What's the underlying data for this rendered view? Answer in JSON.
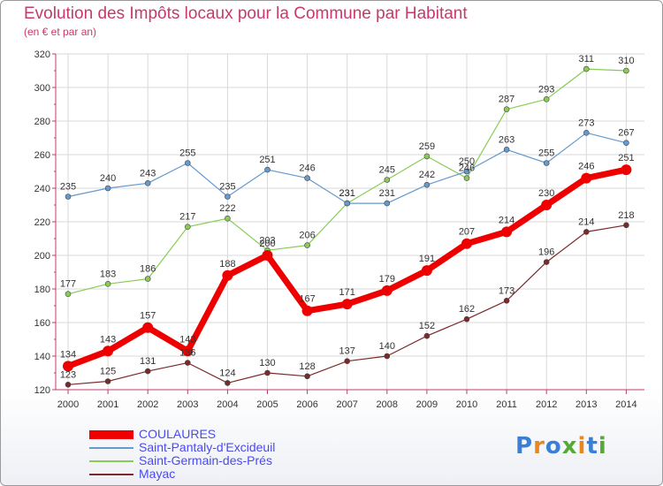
{
  "chart_data": {
    "type": "line",
    "title": "Evolution des Impôts locaux pour la Commune par Habitant",
    "subtitle": "(en € et par an)",
    "xlabel": "",
    "ylabel": "",
    "x": [
      "2000",
      "2001",
      "2002",
      "2003",
      "2004",
      "2005",
      "2006",
      "2007",
      "2008",
      "2009",
      "2010",
      "2011",
      "2012",
      "2013",
      "2014"
    ],
    "ylim": [
      120,
      320
    ],
    "yticks": [
      "120",
      "140",
      "160",
      "180",
      "200",
      "220",
      "240",
      "260",
      "280",
      "300",
      "320"
    ],
    "series": [
      {
        "name": "COULAURES",
        "color": "#ee0000",
        "values": [
          134,
          143,
          157,
          143,
          188,
          200,
          167,
          171,
          179,
          191,
          207,
          214,
          230,
          246,
          251
        ]
      },
      {
        "name": "Saint-Pantaly-d'Excideuil",
        "color": "#6699cc",
        "values": [
          235,
          240,
          243,
          255,
          235,
          251,
          246,
          231,
          231,
          242,
          250,
          263,
          255,
          273,
          267
        ]
      },
      {
        "name": "Saint-Germain-des-Prés",
        "color": "#88cc55",
        "values": [
          177,
          183,
          186,
          217,
          222,
          203,
          206,
          231,
          245,
          259,
          246,
          287,
          293,
          311,
          310
        ]
      },
      {
        "name": "Mayac",
        "color": "#7a2a2a",
        "values": [
          123,
          125,
          131,
          136,
          124,
          130,
          128,
          137,
          140,
          152,
          162,
          173,
          196,
          214,
          218
        ]
      }
    ]
  },
  "logo": {
    "letters": [
      "P",
      "r",
      "o",
      "x",
      "i",
      "t",
      "i"
    ],
    "colors": [
      "#3a7fd5",
      "#e8871e",
      "#3a7fd5",
      "#55aa33",
      "#e8871e",
      "#3a7fd5",
      "#55aa33"
    ]
  }
}
